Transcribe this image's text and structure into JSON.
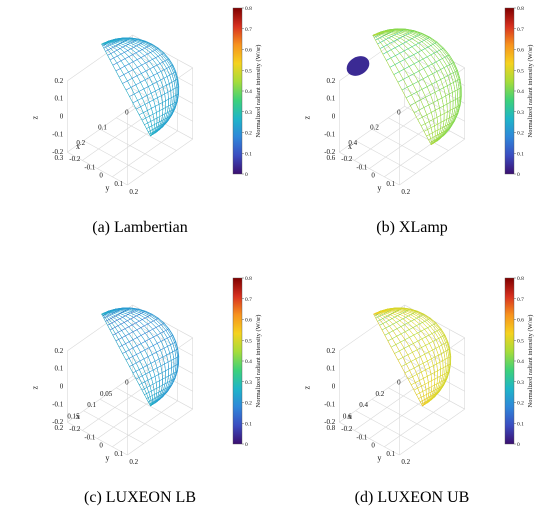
{
  "colormap": [
    "#3b0f70",
    "#3b4cc0",
    "#2f86d9",
    "#1fb5c8",
    "#3dd17a",
    "#a6dc3a",
    "#f5d21f",
    "#f7931e",
    "#d7301f",
    "#7f0000"
  ],
  "chart_data": [
    {
      "type": "3d-surface",
      "caption": "(a)  Lambertian",
      "xlabel": "x",
      "ylabel": "y",
      "zlabel": "z",
      "x_ticks": [
        "0",
        "0.1",
        "0.2",
        "0.3"
      ],
      "y_ticks": [
        "-0.2",
        "-0.1",
        "0",
        "0.1",
        "0.2"
      ],
      "z_ticks": [
        "-0.2",
        "-0.1",
        "0",
        "0.1",
        "0.2"
      ],
      "xlim": [
        0,
        0.3
      ],
      "ylim": [
        -0.2,
        0.2
      ],
      "zlim": [
        -0.2,
        0.2
      ],
      "colorbar": {
        "label": "Normalized radiant intensity (W/sr)",
        "ticks": [
          "0",
          "0.1",
          "0.2",
          "0.3",
          "0.4",
          "0.5",
          "0.6",
          "0.7",
          "0.8"
        ],
        "range": [
          0,
          0.8
        ]
      },
      "surface": {
        "shape": "sphere",
        "color_min": 0.15,
        "color_max": 0.35
      }
    },
    {
      "type": "3d-surface",
      "caption": "(b)  XLamp",
      "xlabel": "x",
      "ylabel": "y",
      "zlabel": "z",
      "x_ticks": [
        "0",
        "0.2",
        "0.4",
        "0.6"
      ],
      "y_ticks": [
        "-0.2",
        "-0.1",
        "0",
        "0.1",
        "0.2"
      ],
      "z_ticks": [
        "-0.2",
        "-0.1",
        "0",
        "0.1",
        "0.2"
      ],
      "xlim": [
        0,
        0.6
      ],
      "ylim": [
        -0.2,
        0.2
      ],
      "zlim": [
        -0.2,
        0.2
      ],
      "colorbar": {
        "label": "Normalized radiant intensity (W/sr)",
        "ticks": [
          "0",
          "0.1",
          "0.2",
          "0.3",
          "0.4",
          "0.5",
          "0.6",
          "0.7",
          "0.8"
        ],
        "range": [
          0,
          0.8
        ]
      },
      "surface": {
        "shape": "lobe",
        "color_min": 0.35,
        "color_max": 0.6
      }
    },
    {
      "type": "3d-surface",
      "caption": "(c)  LUXEON LB",
      "xlabel": "x",
      "ylabel": "y",
      "zlabel": "z",
      "x_ticks": [
        "0",
        "0.05",
        "0.1",
        "0.15",
        "0.2"
      ],
      "y_ticks": [
        "-0.2",
        "-0.1",
        "0",
        "0.1",
        "0.2"
      ],
      "z_ticks": [
        "-0.2",
        "-0.1",
        "0",
        "0.1",
        "0.2"
      ],
      "xlim": [
        0,
        0.2
      ],
      "ylim": [
        -0.2,
        0.2
      ],
      "zlim": [
        -0.2,
        0.2
      ],
      "colorbar": {
        "label": "Normalized radiant intensity (W/sr)",
        "ticks": [
          "0",
          "0.1",
          "0.2",
          "0.3",
          "0.4",
          "0.5",
          "0.6",
          "0.7",
          "0.8"
        ],
        "range": [
          0,
          0.8
        ]
      },
      "surface": {
        "shape": "batwing",
        "color_min": 0.1,
        "color_max": 0.35
      }
    },
    {
      "type": "3d-surface",
      "caption": "(d)  LUXEON UB",
      "xlabel": "x",
      "ylabel": "y",
      "zlabel": "z",
      "x_ticks": [
        "0",
        "0.2",
        "0.4",
        "0.6",
        "0.8"
      ],
      "y_ticks": [
        "-0.2",
        "-0.1",
        "0",
        "0.1",
        "0.2"
      ],
      "z_ticks": [
        "-0.2",
        "-0.1",
        "0",
        "0.1",
        "0.2"
      ],
      "xlim": [
        0,
        0.8
      ],
      "ylim": [
        -0.2,
        0.2
      ],
      "zlim": [
        -0.2,
        0.2
      ],
      "colorbar": {
        "label": "Normalized radiant intensity (W/sr)",
        "ticks": [
          "0",
          "0.1",
          "0.2",
          "0.3",
          "0.4",
          "0.5",
          "0.6",
          "0.7",
          "0.8"
        ],
        "range": [
          0,
          0.8
        ]
      },
      "surface": {
        "shape": "sphere",
        "color_min": 0.45,
        "color_max": 0.7
      }
    }
  ]
}
